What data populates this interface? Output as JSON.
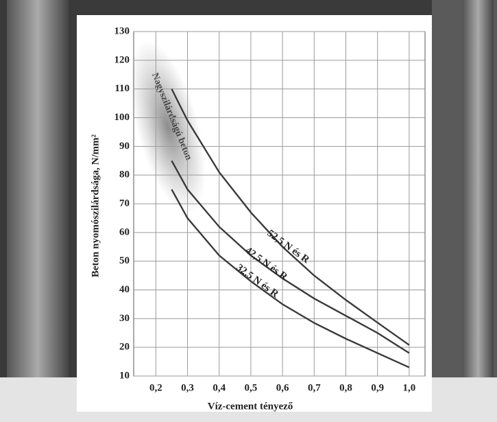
{
  "chart_data": {
    "type": "line",
    "xlabel": "Víz-cement tényező",
    "ylabel": "Beton nyomószilárdsága, N/mm²",
    "annotation": "Nagyszilárdságú beton",
    "xlim": [
      0.13,
      1.05
    ],
    "ylim": [
      10,
      130
    ],
    "xticks": [
      {
        "value": 0.2,
        "label": "0,2"
      },
      {
        "value": 0.3,
        "label": "0,3"
      },
      {
        "value": 0.4,
        "label": "0,4"
      },
      {
        "value": 0.5,
        "label": "0,5"
      },
      {
        "value": 0.6,
        "label": "0,6"
      },
      {
        "value": 0.7,
        "label": "0,7"
      },
      {
        "value": 0.8,
        "label": "0,8"
      },
      {
        "value": 0.9,
        "label": "0,9"
      },
      {
        "value": 1.0,
        "label": "1,0"
      }
    ],
    "yticks": [
      10,
      20,
      30,
      40,
      50,
      60,
      70,
      80,
      90,
      100,
      110,
      120,
      130
    ],
    "grid": true,
    "x": [
      0.25,
      0.3,
      0.4,
      0.5,
      0.6,
      0.7,
      0.8,
      0.9,
      1.0
    ],
    "series": [
      {
        "name": "52,5 N és R",
        "color": "#3a3a3a",
        "values": [
          110,
          99,
          81,
          67,
          55,
          45,
          36.5,
          28.6,
          20.8
        ]
      },
      {
        "name": "42,5 N és R",
        "color": "#3a3a3a",
        "values": [
          85,
          75,
          62,
          52,
          44,
          37,
          31,
          25,
          18
        ]
      },
      {
        "name": "32,5 N és R",
        "color": "#3a3a3a",
        "values": [
          75,
          65,
          52,
          43,
          35,
          28.5,
          23,
          18,
          13
        ]
      }
    ]
  }
}
